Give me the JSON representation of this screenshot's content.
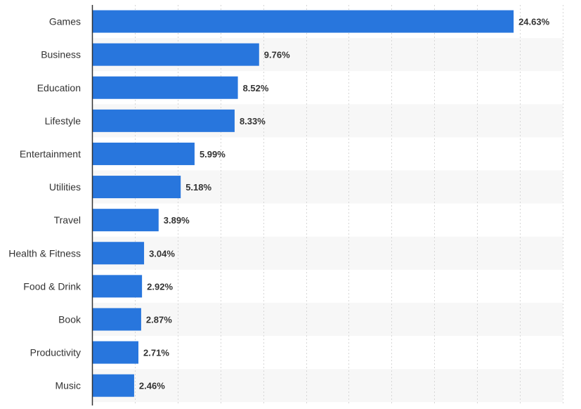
{
  "chart_data": {
    "type": "bar",
    "orientation": "horizontal",
    "categories": [
      "Games",
      "Business",
      "Education",
      "Lifestyle",
      "Entertainment",
      "Utilities",
      "Travel",
      "Health & Fitness",
      "Food & Drink",
      "Book",
      "Productivity",
      "Music"
    ],
    "values": [
      24.63,
      9.76,
      8.52,
      8.33,
      5.99,
      5.18,
      3.89,
      3.04,
      2.92,
      2.87,
      2.71,
      2.46
    ],
    "value_labels": [
      "24.63%",
      "9.76%",
      "8.52%",
      "8.33%",
      "5.99%",
      "5.18%",
      "3.89%",
      "3.04%",
      "2.92%",
      "2.87%",
      "2.71%",
      "2.46%"
    ],
    "title": "",
    "xlabel": "",
    "ylabel": "",
    "xlim": [
      0,
      27.5
    ],
    "grid": true,
    "grid_style": "dashed vertical",
    "alternating_row_bands": true,
    "colors": {
      "bar": "#2876dd",
      "band": "#f7f7f7",
      "grid": "#d6d6d6",
      "axis": "#333333",
      "text": "#333333"
    }
  }
}
